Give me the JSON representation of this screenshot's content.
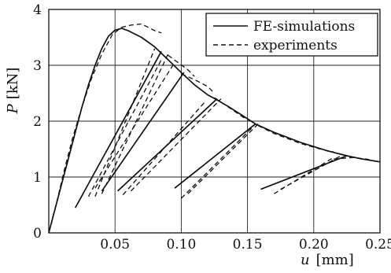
{
  "chart_data": {
    "type": "line",
    "xlabel_symbol": "u",
    "xlabel_unit": "[mm]",
    "ylabel_symbol": "P",
    "ylabel_unit": "[kN]",
    "xlim": [
      0,
      0.25
    ],
    "ylim": [
      0,
      4
    ],
    "xticks": [
      {
        "value": 0.05,
        "label": "0.05"
      },
      {
        "value": 0.1,
        "label": "0.10"
      },
      {
        "value": 0.15,
        "label": "0.15"
      },
      {
        "value": 0.2,
        "label": "0.20"
      },
      {
        "value": 0.25,
        "label": "0.25"
      }
    ],
    "yticks": [
      {
        "value": 0,
        "label": "0"
      },
      {
        "value": 1,
        "label": "1"
      },
      {
        "value": 2,
        "label": "2"
      },
      {
        "value": 3,
        "label": "3"
      },
      {
        "value": 4,
        "label": "4"
      }
    ],
    "grid": true,
    "legend_position": "top-right",
    "series": [
      {
        "name": "FE-simulations",
        "style": "solid",
        "segments": [
          [
            [
              0,
              0
            ],
            [
              0.005,
              0.45
            ],
            [
              0.01,
              0.9
            ],
            [
              0.015,
              1.35
            ],
            [
              0.02,
              1.8
            ],
            [
              0.025,
              2.25
            ],
            [
              0.03,
              2.65
            ],
            [
              0.035,
              3.0
            ],
            [
              0.04,
              3.3
            ],
            [
              0.045,
              3.52
            ],
            [
              0.05,
              3.63
            ],
            [
              0.055,
              3.66
            ],
            [
              0.06,
              3.62
            ],
            [
              0.07,
              3.5
            ],
            [
              0.08,
              3.33
            ],
            [
              0.09,
              3.1
            ],
            [
              0.1,
              2.87
            ],
            [
              0.11,
              2.65
            ],
            [
              0.12,
              2.47
            ],
            [
              0.127,
              2.38
            ],
            [
              0.135,
              2.27
            ],
            [
              0.145,
              2.12
            ],
            [
              0.156,
              1.95
            ],
            [
              0.17,
              1.8
            ],
            [
              0.19,
              1.62
            ],
            [
              0.21,
              1.47
            ],
            [
              0.225,
              1.38
            ],
            [
              0.235,
              1.33
            ],
            [
              0.25,
              1.27
            ]
          ],
          [
            [
              0.02,
              0.45
            ],
            [
              0.085,
              3.25
            ]
          ],
          [
            [
              0.04,
              0.75
            ],
            [
              0.102,
              2.87
            ]
          ],
          [
            [
              0.052,
              0.75
            ],
            [
              0.127,
              2.4
            ]
          ],
          [
            [
              0.095,
              0.8
            ],
            [
              0.156,
              1.95
            ]
          ],
          [
            [
              0.16,
              0.78
            ],
            [
              0.225,
              1.38
            ]
          ]
        ]
      },
      {
        "name": "experiments",
        "style": "dashed",
        "segments": [
          [
            [
              0,
              0
            ],
            [
              0.006,
              0.55
            ],
            [
              0.012,
              1.15
            ],
            [
              0.018,
              1.7
            ],
            [
              0.025,
              2.25
            ],
            [
              0.032,
              2.75
            ],
            [
              0.04,
              3.2
            ],
            [
              0.048,
              3.55
            ],
            [
              0.055,
              3.68
            ],
            [
              0.062,
              3.72
            ],
            [
              0.07,
              3.74
            ],
            [
              0.075,
              3.68
            ],
            [
              0.08,
              3.62
            ],
            [
              0.085,
              3.58
            ]
          ],
          [
            [
              0.035,
              0.65
            ],
            [
              0.08,
              3.3
            ]
          ],
          [
            [
              0.03,
              0.65
            ],
            [
              0.085,
              3.1
            ]
          ],
          [
            [
              0.09,
              3.18
            ],
            [
              0.105,
              2.92
            ],
            [
              0.11,
              2.8
            ]
          ],
          [
            [
              0.04,
              0.7
            ],
            [
              0.09,
              3.2
            ]
          ],
          [
            [
              0.035,
              0.8
            ],
            [
              0.095,
              3.05
            ]
          ],
          [
            [
              0.1,
              2.85
            ],
            [
              0.112,
              2.72
            ],
            [
              0.12,
              2.62
            ],
            [
              0.125,
              2.5
            ]
          ],
          [
            [
              0.056,
              0.68
            ],
            [
              0.118,
              2.35
            ]
          ],
          [
            [
              0.062,
              0.75
            ],
            [
              0.13,
              2.4
            ]
          ],
          [
            [
              0.125,
              2.42
            ],
            [
              0.14,
              2.18
            ],
            [
              0.148,
              2.05
            ],
            [
              0.155,
              1.98
            ]
          ],
          [
            [
              0.1,
              0.62
            ],
            [
              0.155,
              1.92
            ]
          ],
          [
            [
              0.105,
              0.7
            ],
            [
              0.158,
              1.95
            ]
          ],
          [
            [
              0.158,
              1.92
            ],
            [
              0.17,
              1.78
            ],
            [
              0.19,
              1.6
            ],
            [
              0.205,
              1.5
            ],
            [
              0.215,
              1.45
            ]
          ],
          [
            [
              0.17,
              0.7
            ],
            [
              0.215,
              1.35
            ]
          ],
          [
            [
              0.175,
              0.78
            ],
            [
              0.222,
              1.4
            ]
          ],
          [
            [
              0.215,
              1.32
            ],
            [
              0.23,
              1.35
            ],
            [
              0.24,
              1.32
            ],
            [
              0.25,
              1.27
            ]
          ]
        ]
      }
    ]
  }
}
